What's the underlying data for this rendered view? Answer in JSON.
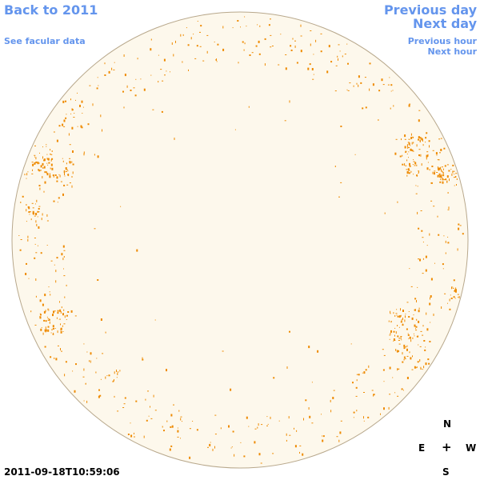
{
  "nav": {
    "back_label": "Back to 2011",
    "facular_label": "See facular data",
    "prev_day_label": "Previous day",
    "next_day_label": "Next day",
    "prev_hour_label": "Previous hour",
    "next_hour_label": "Next hour"
  },
  "compass": {
    "north": "N",
    "east": "E",
    "center": "+",
    "west": "W",
    "south": "S"
  },
  "timestamp": "2011-09-18T10:59:06",
  "colors": {
    "link": "#6495ed",
    "disk_fill": "#fdf8ec",
    "disk_outline": "#b8a88c",
    "feature": "#ee8a00"
  }
}
